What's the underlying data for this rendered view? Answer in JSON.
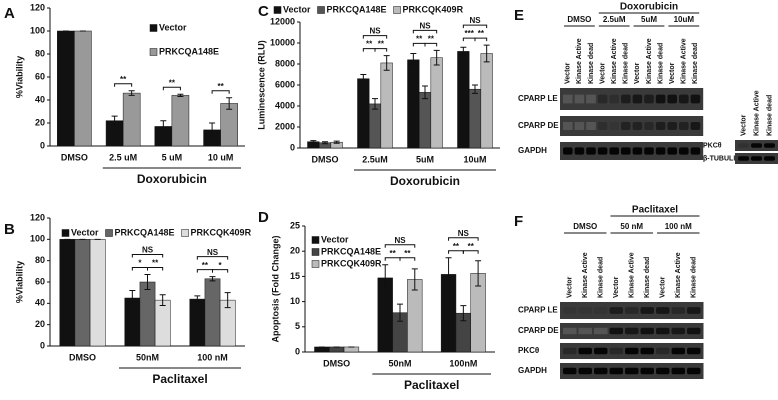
{
  "chart_data": [
    {
      "type": "bar",
      "panel": "A",
      "ylabel": "%Viability",
      "categories": [
        "DMSO",
        "2.5 uM",
        "5 uM",
        "10 uM"
      ],
      "group_label": "Doxorubicin",
      "series": [
        {
          "name": "Vector",
          "color": "#111111",
          "values": [
            100,
            22,
            17,
            14
          ],
          "errors": [
            0,
            4,
            5,
            6
          ]
        },
        {
          "name": "PRKCQA148E",
          "color": "#999999",
          "values": [
            100,
            46,
            44,
            37
          ],
          "errors": [
            0,
            2,
            1,
            5
          ]
        }
      ],
      "ylim": [
        0,
        120
      ],
      "yticks": [
        0,
        20,
        40,
        60,
        80,
        100,
        120
      ],
      "legend": "upper right",
      "annotations": [
        "**",
        "**",
        "**"
      ]
    },
    {
      "type": "bar",
      "panel": "B",
      "ylabel": "%Viability",
      "categories": [
        "DMSO",
        "50nM",
        "100 nM"
      ],
      "group_label": "Paclitaxel",
      "series": [
        {
          "name": "Vector",
          "color": "#111111",
          "values": [
            100,
            45,
            44
          ],
          "errors": [
            0,
            7,
            3
          ]
        },
        {
          "name": "PRKCQA148E",
          "color": "#666666",
          "values": [
            100,
            60,
            63
          ],
          "errors": [
            0,
            7,
            2
          ]
        },
        {
          "name": "PRKCQK409R",
          "color": "#dddddd",
          "values": [
            100,
            43,
            43
          ],
          "errors": [
            0,
            5,
            7
          ]
        }
      ],
      "ylim": [
        0,
        120
      ],
      "yticks": [
        0,
        20,
        40,
        60,
        80,
        100,
        120
      ],
      "legend": "top",
      "annotations": [
        "NS",
        "*",
        "**",
        "NS",
        "**",
        "*"
      ]
    },
    {
      "type": "bar",
      "panel": "C",
      "ylabel": "Luminescence (RLU)",
      "categories": [
        "DMSO",
        "2.5uM",
        "5uM",
        "10uM"
      ],
      "group_label": "Doxorubicin",
      "series": [
        {
          "name": "Vector",
          "color": "#111111",
          "values": [
            600,
            6600,
            8400,
            9200
          ],
          "errors": [
            100,
            400,
            600,
            400
          ]
        },
        {
          "name": "PRKCQA148E",
          "color": "#555555",
          "values": [
            500,
            4200,
            5300,
            5600
          ],
          "errors": [
            100,
            500,
            600,
            400
          ]
        },
        {
          "name": "PRKCQK409R",
          "color": "#bbbbbb",
          "values": [
            550,
            8100,
            8600,
            9000
          ],
          "errors": [
            100,
            700,
            700,
            800
          ]
        }
      ],
      "ylim": [
        0,
        12000
      ],
      "yticks": [
        0,
        2000,
        4000,
        6000,
        8000,
        10000,
        12000
      ],
      "legend": "top",
      "annotations": [
        "NS",
        "**",
        "**",
        "NS",
        "**",
        "**",
        "NS",
        "***",
        "**"
      ]
    },
    {
      "type": "bar",
      "panel": "D",
      "ylabel": "Apoptosis (Fold Change)",
      "categories": [
        "DMSO",
        "50nM",
        "100nM"
      ],
      "group_label": "Paclitaxel",
      "series": [
        {
          "name": "Vector",
          "color": "#111111",
          "values": [
            1,
            14.7,
            15.4
          ],
          "errors": [
            0,
            2.6,
            3.3
          ]
        },
        {
          "name": "PRKCQA148E",
          "color": "#444444",
          "values": [
            1,
            7.8,
            7.7
          ],
          "errors": [
            0,
            1.7,
            1.5
          ]
        },
        {
          "name": "PRKCQK409R",
          "color": "#bbbbbb",
          "values": [
            1,
            14.4,
            15.6
          ],
          "errors": [
            0,
            2.1,
            2.5
          ]
        }
      ],
      "ylim": [
        0,
        25
      ],
      "yticks": [
        0,
        5,
        10,
        15,
        20,
        25
      ],
      "legend": "upper left",
      "annotations": [
        "NS",
        "**",
        "**",
        "NS",
        "**",
        "**"
      ]
    }
  ],
  "blots": [
    {
      "panel": "E",
      "treatment": "Doxorubicin",
      "groups": [
        {
          "label": "DMSO",
          "lanes": [
            "Vector",
            "Kinase Active",
            "Kinase dead"
          ]
        },
        {
          "label": "2.5uM",
          "lanes": [
            "Vector",
            "Kinase Active",
            "Kinase dead"
          ]
        },
        {
          "label": "5uM",
          "lanes": [
            "Vector",
            "Kinase Active",
            "Kinase dead"
          ]
        },
        {
          "label": "10uM",
          "lanes": [
            "Vector",
            "Kinase Active",
            "Kinase dead"
          ]
        }
      ],
      "rows": [
        "CPARP LE",
        "CPARP DE",
        "GAPDH"
      ],
      "side": {
        "lanes": [
          "Vector",
          "Kinase Active",
          "Kinase dead"
        ],
        "rows": [
          "PKCθ",
          "β-TUBULIN"
        ]
      }
    },
    {
      "panel": "F",
      "treatment": "Paclitaxel",
      "groups": [
        {
          "label": "DMSO",
          "lanes": [
            "Vector",
            "Kinase Active",
            "Kinase dead"
          ]
        },
        {
          "label": "50 nM",
          "lanes": [
            "Vector",
            "Kinase Active",
            "Kinase dead"
          ]
        },
        {
          "label": "100 nM",
          "lanes": [
            "Vector",
            "Kinase Active",
            "Kinase dead"
          ]
        }
      ],
      "rows": [
        "CPARP LE",
        "CPARP DE",
        "PKCθ",
        "GAPDH"
      ]
    }
  ]
}
